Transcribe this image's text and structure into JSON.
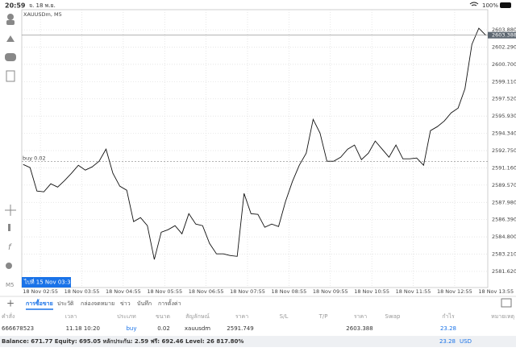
{
  "status_bar": {
    "time": "20:59",
    "date": "จ. 18 พ.ย.",
    "battery": "100%"
  },
  "chart_data": {
    "type": "line",
    "symbol_label": "XAUUSDm, M5",
    "color": "#111111",
    "x": [
      "18 Nov 02:30",
      "18 Nov 02:40",
      "18 Nov 02:50",
      "18 Nov 03:00",
      "18 Nov 03:10",
      "18 Nov 03:20",
      "18 Nov 03:30",
      "18 Nov 03:40",
      "18 Nov 03:50",
      "18 Nov 04:00",
      "18 Nov 04:10",
      "18 Nov 04:20",
      "18 Nov 04:30",
      "18 Nov 04:40",
      "18 Nov 04:50",
      "18 Nov 05:00",
      "18 Nov 05:10",
      "18 Nov 05:20",
      "18 Nov 05:30",
      "18 Nov 05:40",
      "18 Nov 05:50",
      "18 Nov 06:00",
      "18 Nov 06:10",
      "18 Nov 06:20",
      "18 Nov 06:30",
      "18 Nov 06:40",
      "18 Nov 06:50",
      "18 Nov 07:00",
      "18 Nov 07:10",
      "18 Nov 07:20",
      "18 Nov 07:30",
      "18 Nov 07:40",
      "18 Nov 07:50",
      "18 Nov 08:00",
      "18 Nov 08:10",
      "18 Nov 08:20",
      "18 Nov 08:30",
      "18 Nov 08:40",
      "18 Nov 08:50",
      "18 Nov 09:00",
      "18 Nov 09:10",
      "18 Nov 09:20",
      "18 Nov 09:30",
      "18 Nov 09:40",
      "18 Nov 09:50",
      "18 Nov 10:00",
      "18 Nov 10:10",
      "18 Nov 10:20",
      "18 Nov 10:30",
      "18 Nov 10:40",
      "18 Nov 10:50",
      "18 Nov 11:00",
      "18 Nov 11:10",
      "18 Nov 11:20",
      "18 Nov 11:30",
      "18 Nov 11:40",
      "18 Nov 11:50",
      "18 Nov 12:00",
      "18 Nov 12:10",
      "18 Nov 12:20",
      "18 Nov 12:30",
      "18 Nov 12:40",
      "18 Nov 12:50",
      "18 Nov 13:00",
      "18 Nov 13:10",
      "18 Nov 13:20",
      "18 Nov 13:30",
      "18 Nov 13:40"
    ],
    "values": [
      2591.47,
      2591.18,
      2589.02,
      2588.95,
      2589.69,
      2589.39,
      2589.99,
      2590.66,
      2591.4,
      2590.95,
      2591.25,
      2591.77,
      2592.88,
      2590.66,
      2589.47,
      2589.1,
      2586.2,
      2586.57,
      2585.83,
      2582.71,
      2585.23,
      2585.46,
      2585.83,
      2585.08,
      2586.94,
      2585.98,
      2585.83,
      2584.19,
      2583.23,
      2583.23,
      2583.08,
      2583.0,
      2588.8,
      2586.94,
      2586.87,
      2585.68,
      2585.98,
      2585.75,
      2588.06,
      2589.91,
      2591.4,
      2592.51,
      2595.63,
      2594.37,
      2591.77,
      2591.77,
      2592.14,
      2592.88,
      2593.26,
      2591.92,
      2592.51,
      2593.63,
      2592.88,
      2592.14,
      2593.26,
      2591.99,
      2591.99,
      2592.07,
      2591.4,
      2594.59,
      2594.96,
      2595.48,
      2596.23,
      2596.67,
      2598.46,
      2602.54,
      2604.03,
      2603.39
    ],
    "xlim": [
      "18 Nov 02:28",
      "18 Nov 13:43"
    ],
    "xticks": [
      "18 Nov 02:55",
      "18 Nov 03:55",
      "18 Nov 04:55",
      "18 Nov 05:55",
      "18 Nov 06:55",
      "18 Nov 07:55",
      "18 Nov 08:55",
      "18 Nov 09:55",
      "18 Nov 10:55",
      "18 Nov 11:55",
      "18 Nov 12:55",
      "18 Nov 13:55"
    ],
    "ylim": [
      2580.13,
      2605.74
    ],
    "yticks": [
      {
        "value": 2603.88,
        "label": "2603.880"
      },
      {
        "value": 2602.29,
        "label": "2602.290"
      },
      {
        "value": 2600.7,
        "label": "2600.700"
      },
      {
        "value": 2599.11,
        "label": "2599.110"
      },
      {
        "value": 2597.52,
        "label": "2597.520"
      },
      {
        "value": 2595.93,
        "label": "2595.930"
      },
      {
        "value": 2594.34,
        "label": "2594.340"
      },
      {
        "value": 2592.75,
        "label": "2592.750"
      },
      {
        "value": 2591.16,
        "label": "2591.160"
      },
      {
        "value": 2589.57,
        "label": "2589.570"
      },
      {
        "value": 2587.98,
        "label": "2587.980"
      },
      {
        "value": 2586.39,
        "label": "2586.390"
      },
      {
        "value": 2584.8,
        "label": "2584.800"
      },
      {
        "value": 2583.21,
        "label": "2583.210"
      },
      {
        "value": 2581.62,
        "label": "2581.620"
      }
    ],
    "grid": true,
    "current_price": {
      "value": 2603.388,
      "label": "2603.388"
    },
    "order_line": {
      "value": 2591.749,
      "label": "buy 0.02"
    },
    "goto_label": "ไปที่ 15 Nov 03:30"
  },
  "tabs": [
    "การซื้อขาย",
    "ประวัติ",
    "กล่องจดหมาย",
    "ข่าว",
    "บันทึก",
    "การตั้งค่า"
  ],
  "table": {
    "headers": [
      "คำสั่ง",
      "เวลา",
      "ประเภท",
      "ขนาด",
      "สัญลักษณ์",
      "ราคา",
      "S/L",
      "T/P",
      "ราคา",
      "Swap",
      "กำไร",
      "หมายเหตุ"
    ],
    "rows": [
      {
        "order": "666678523",
        "time": "11.18 10:20",
        "type": "buy",
        "size": "0.02",
        "symbol": "xauusdm",
        "open_price": "2591.749",
        "price": "2603.388",
        "profit": "23.28"
      }
    ]
  },
  "balance": {
    "text": "Balance: 671.77 Equity: 695.05 หลักประกัน: 2.59 ฟรี: 692.46 Level: 26 817.80%",
    "profit": "23.28",
    "currency": "USD"
  }
}
